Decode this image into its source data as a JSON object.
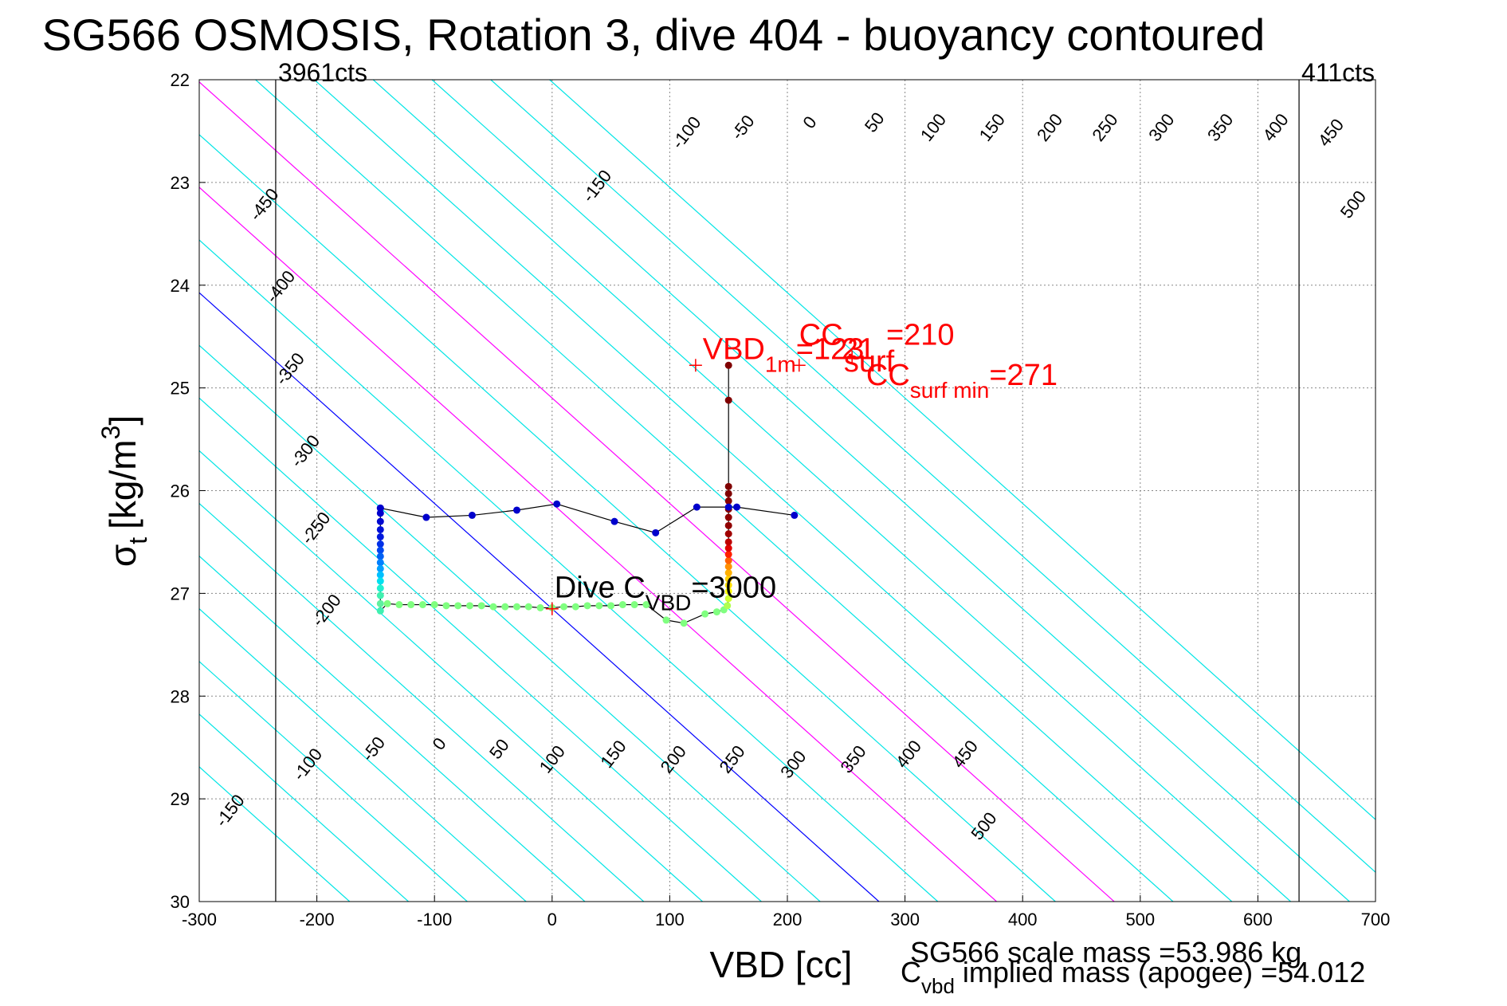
{
  "chart_data": {
    "type": "scatter",
    "title": "SG566 OSMOSIS, Rotation 3, dive 404 - buoyancy contoured",
    "xlabel": "VBD [cc]",
    "ylabel_main": "σ",
    "ylabel_sub": "t",
    "ylabel_unit": "[kg/m",
    "ylabel_sup": "3",
    "ylabel_close": "]",
    "xlim": [
      -300,
      700
    ],
    "ylim": [
      22,
      30
    ],
    "y_reversed": true,
    "grid": true,
    "xticks": [
      -300,
      -200,
      -100,
      0,
      100,
      200,
      300,
      400,
      500,
      600,
      700
    ],
    "yticks": [
      22,
      23,
      24,
      25,
      26,
      27,
      28,
      29,
      30
    ],
    "contour_slope_cc_per_sigma": 97.5,
    "contours": [
      -450,
      -400,
      -350,
      -300,
      -250,
      -200,
      -150,
      -100,
      -50,
      0,
      50,
      100,
      150,
      200,
      250,
      300,
      350,
      400,
      450,
      500
    ],
    "contour_colors": {
      "default": "#00e5e5",
      "zero": "#0000ff",
      "highlight": "#ff00ff"
    },
    "highlight_contours": [
      100,
      200
    ],
    "contour_labels_top": [
      {
        "text": "-450",
        "x": -241,
        "y": 23.25
      },
      {
        "text": "-400",
        "x": -227,
        "y": 24.05
      },
      {
        "text": "-350",
        "x": -219,
        "y": 24.85
      },
      {
        "text": "-300",
        "x": -206,
        "y": 25.65
      },
      {
        "text": "-250",
        "x": -197,
        "y": 26.4
      },
      {
        "text": "-200",
        "x": -188,
        "y": 27.2
      },
      {
        "text": "-150",
        "x": 42,
        "y": 23.07
      },
      {
        "text": "-100",
        "x": 118,
        "y": 22.55
      },
      {
        "text": "-50",
        "x": 166,
        "y": 22.5
      },
      {
        "text": "0",
        "x": 223,
        "y": 22.45
      },
      {
        "text": "50",
        "x": 278,
        "y": 22.45
      },
      {
        "text": "100",
        "x": 328,
        "y": 22.5
      },
      {
        "text": "150",
        "x": 378,
        "y": 22.5
      },
      {
        "text": "200",
        "x": 427,
        "y": 22.5
      },
      {
        "text": "250",
        "x": 474,
        "y": 22.5
      },
      {
        "text": "300",
        "x": 522,
        "y": 22.5
      },
      {
        "text": "350",
        "x": 572,
        "y": 22.5
      },
      {
        "text": "400",
        "x": 619,
        "y": 22.5
      },
      {
        "text": "450",
        "x": 666,
        "y": 22.55
      },
      {
        "text": "500",
        "x": 685,
        "y": 23.25
      }
    ],
    "contour_labels_bottom": [
      {
        "text": "-150",
        "x": -270,
        "y": 29.15
      },
      {
        "text": "-100",
        "x": -204,
        "y": 28.7
      },
      {
        "text": "-50",
        "x": -148,
        "y": 28.55
      },
      {
        "text": "0",
        "x": -92,
        "y": 28.5
      },
      {
        "text": "50",
        "x": -41,
        "y": 28.55
      },
      {
        "text": "100",
        "x": 4,
        "y": 28.65
      },
      {
        "text": "150",
        "x": 56,
        "y": 28.6
      },
      {
        "text": "200",
        "x": 107,
        "y": 28.65
      },
      {
        "text": "250",
        "x": 157,
        "y": 28.65
      },
      {
        "text": "300",
        "x": 209,
        "y": 28.7
      },
      {
        "text": "350",
        "x": 260,
        "y": 28.65
      },
      {
        "text": "400",
        "x": 307,
        "y": 28.6
      },
      {
        "text": "450",
        "x": 355,
        "y": 28.6
      },
      {
        "text": "500",
        "x": 371,
        "y": 29.3
      }
    ],
    "limits": [
      {
        "x": -235,
        "label": "3961cts"
      },
      {
        "x": 635,
        "label": "411cts"
      }
    ],
    "dive_curve": [
      {
        "x": -146,
        "y": 26.17,
        "c": "#0000cc"
      },
      {
        "x": -146,
        "y": 26.22,
        "c": "#0000cc"
      },
      {
        "x": -146,
        "y": 26.3,
        "c": "#0008d0"
      },
      {
        "x": -146,
        "y": 26.38,
        "c": "#0010d8"
      },
      {
        "x": -146,
        "y": 26.45,
        "c": "#0018dc"
      },
      {
        "x": -146,
        "y": 26.52,
        "c": "#0030e8"
      },
      {
        "x": -146,
        "y": 26.58,
        "c": "#0048f0"
      },
      {
        "x": -146,
        "y": 26.64,
        "c": "#0060f4"
      },
      {
        "x": -146,
        "y": 26.7,
        "c": "#0080ff"
      },
      {
        "x": -146,
        "y": 26.76,
        "c": "#00a0ff"
      },
      {
        "x": -146,
        "y": 26.82,
        "c": "#00c0ff"
      },
      {
        "x": -146,
        "y": 26.88,
        "c": "#00e0f0"
      },
      {
        "x": -146,
        "y": 26.95,
        "c": "#20f0d0"
      },
      {
        "x": -146,
        "y": 27.02,
        "c": "#40f0b0"
      },
      {
        "x": -146,
        "y": 27.1,
        "c": "#60f0a0"
      },
      {
        "x": -146,
        "y": 27.17,
        "c": "#40f0b0"
      },
      {
        "x": -140,
        "y": 27.1,
        "c": "#80ff80"
      },
      {
        "x": -130,
        "y": 27.11,
        "c": "#80ff80"
      },
      {
        "x": -120,
        "y": 27.11,
        "c": "#80ff80"
      },
      {
        "x": -110,
        "y": 27.11,
        "c": "#80ff80"
      },
      {
        "x": -100,
        "y": 27.11,
        "c": "#80ff80"
      },
      {
        "x": -90,
        "y": 27.12,
        "c": "#80ff80"
      },
      {
        "x": -80,
        "y": 27.12,
        "c": "#80ff80"
      },
      {
        "x": -70,
        "y": 27.12,
        "c": "#80ff80"
      },
      {
        "x": -60,
        "y": 27.12,
        "c": "#80ff80"
      },
      {
        "x": -50,
        "y": 27.13,
        "c": "#80ff80"
      },
      {
        "x": -40,
        "y": 27.13,
        "c": "#80ff80"
      },
      {
        "x": -30,
        "y": 27.13,
        "c": "#80ff80"
      },
      {
        "x": -20,
        "y": 27.13,
        "c": "#80ff80"
      },
      {
        "x": -10,
        "y": 27.14,
        "c": "#80ff80"
      },
      {
        "x": 0,
        "y": 27.14,
        "c": "#80ff80"
      },
      {
        "x": 10,
        "y": 27.13,
        "c": "#80ff80"
      },
      {
        "x": 20,
        "y": 27.13,
        "c": "#80ff80"
      },
      {
        "x": 30,
        "y": 27.12,
        "c": "#80ff80"
      },
      {
        "x": 40,
        "y": 27.12,
        "c": "#80ff80"
      },
      {
        "x": 50,
        "y": 27.12,
        "c": "#80ff80"
      },
      {
        "x": 60,
        "y": 27.11,
        "c": "#80ff80"
      },
      {
        "x": 70,
        "y": 27.11,
        "c": "#80ff80"
      },
      {
        "x": 80,
        "y": 27.11,
        "c": "#80ff80"
      },
      {
        "x": 97,
        "y": 27.26,
        "c": "#80ff80"
      },
      {
        "x": 112,
        "y": 27.29,
        "c": "#80ff80"
      },
      {
        "x": 130,
        "y": 27.2,
        "c": "#80ff80"
      },
      {
        "x": 140,
        "y": 27.18,
        "c": "#80ff80"
      },
      {
        "x": 146,
        "y": 27.16,
        "c": "#80ff80"
      },
      {
        "x": 149,
        "y": 27.12,
        "c": "#b0ff50"
      },
      {
        "x": 150,
        "y": 27.05,
        "c": "#d0ff30"
      },
      {
        "x": 150,
        "y": 26.98,
        "c": "#ffff00"
      },
      {
        "x": 150,
        "y": 26.92,
        "c": "#ffe000"
      },
      {
        "x": 150,
        "y": 26.86,
        "c": "#ffd000"
      },
      {
        "x": 150,
        "y": 26.8,
        "c": "#ffb000"
      },
      {
        "x": 150,
        "y": 26.74,
        "c": "#ff9000"
      },
      {
        "x": 150,
        "y": 26.68,
        "c": "#ff6000"
      },
      {
        "x": 150,
        "y": 26.62,
        "c": "#ff2000"
      },
      {
        "x": 150,
        "y": 26.56,
        "c": "#e00000"
      },
      {
        "x": 150,
        "y": 26.5,
        "c": "#c00000"
      },
      {
        "x": 150,
        "y": 26.42,
        "c": "#a00000"
      },
      {
        "x": 150,
        "y": 26.34,
        "c": "#900000"
      },
      {
        "x": 150,
        "y": 26.26,
        "c": "#900000"
      },
      {
        "x": 150,
        "y": 26.18,
        "c": "#880000"
      },
      {
        "x": 150,
        "y": 26.1,
        "c": "#880000"
      },
      {
        "x": 150,
        "y": 26.03,
        "c": "#800000"
      },
      {
        "x": 150,
        "y": 25.96,
        "c": "#800000"
      },
      {
        "x": 150,
        "y": 25.12,
        "c": "#800000"
      },
      {
        "x": 150,
        "y": 24.78,
        "c": "#800000"
      }
    ],
    "top_curve": [
      {
        "x": -146,
        "y": 26.17
      },
      {
        "x": -107,
        "y": 26.26
      },
      {
        "x": -68,
        "y": 26.24
      },
      {
        "x": -30,
        "y": 26.19
      },
      {
        "x": 4,
        "y": 26.13
      },
      {
        "x": 53,
        "y": 26.3
      },
      {
        "x": 88,
        "y": 26.41
      },
      {
        "x": 123,
        "y": 26.16
      },
      {
        "x": 150,
        "y": 26.16
      },
      {
        "x": 157,
        "y": 26.16
      },
      {
        "x": 206,
        "y": 26.24
      }
    ],
    "top_curve_color": "#0000cc",
    "annotations": [
      {
        "main": "VBD",
        "sub": "1m",
        "rest": "=123",
        "x": 128,
        "y": 24.72
      },
      {
        "main": "CC",
        "sub": "",
        "rest": "",
        "x": 210,
        "y": 24.58
      },
      {
        "main": "",
        "sub": "",
        "rest": "21",
        "x": 246,
        "y": 24.72
      },
      {
        "main": "",
        "sub": "",
        "rest": "=210",
        "x": 284,
        "y": 24.58
      },
      {
        "main": "",
        "sub": "",
        "rest": "surf",
        "x": 248,
        "y": 24.84
      },
      {
        "main": "CC",
        "sub": "surf min",
        "rest": "=271",
        "x": 267,
        "y": 24.97
      },
      {
        "main": "Dive C",
        "sub": "VBD",
        "rest": "=3000",
        "x": 2,
        "y": 27.04
      }
    ],
    "markers": [
      {
        "x": 122,
        "y": 24.78
      },
      {
        "x": 210,
        "y": 24.78
      },
      {
        "x": 255,
        "y": 24.7
      },
      {
        "x": 0,
        "y": 27.15
      }
    ],
    "footer": [
      {
        "text": "SG566 scale mass =53.986 kg"
      },
      {
        "main": "C",
        "sub": "vbd",
        "rest": " implied mass (apogee) =54.012"
      }
    ]
  }
}
